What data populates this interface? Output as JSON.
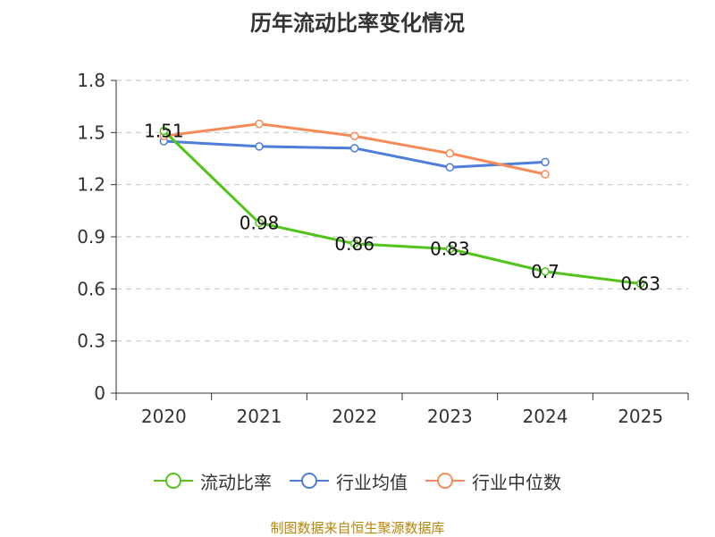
{
  "chart_data": {
    "type": "line",
    "title": "历年流动比率变化情况",
    "categories": [
      "2020",
      "2021",
      "2022",
      "2023",
      "2024",
      "2025"
    ],
    "ylim": [
      0,
      1.8
    ],
    "yticks": [
      0,
      0.3,
      0.6,
      0.9,
      1.2,
      1.5,
      1.8
    ],
    "ytick_labels": [
      "0",
      "0.3",
      "0.6",
      "0.9",
      "1.2",
      "1.5",
      "1.8"
    ],
    "grid": true,
    "legend_position": "bottom-center",
    "series": [
      {
        "name": "流动比率",
        "color": "#52c41a",
        "values": [
          1.51,
          0.98,
          0.86,
          0.83,
          0.7,
          0.63
        ],
        "labels": [
          "1.51",
          "0.98",
          "0.86",
          "0.83",
          "0.7",
          "0.63"
        ]
      },
      {
        "name": "行业均值",
        "color": "#4e7ddb",
        "values": [
          1.45,
          1.42,
          1.41,
          1.3,
          1.33,
          null
        ]
      },
      {
        "name": "行业中位数",
        "color": "#f78b57",
        "values": [
          1.48,
          1.55,
          1.48,
          1.38,
          1.26,
          null
        ]
      }
    ]
  },
  "source_note": "制图数据来自恒生聚源数据库"
}
